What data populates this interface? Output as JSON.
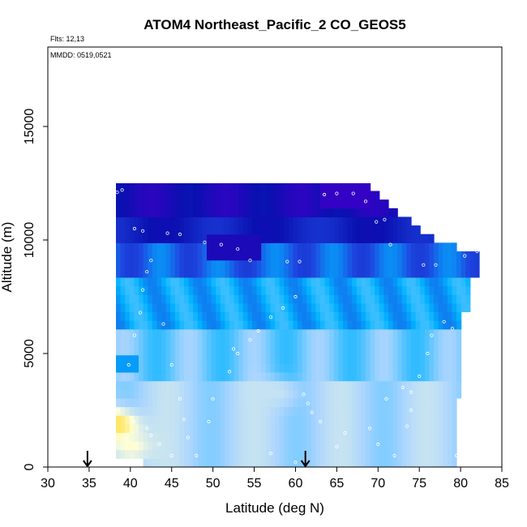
{
  "chart_data": {
    "type": "heatmap",
    "title": "ATOM4 Northeast_Pacific_2 CO_GEOS5",
    "flights_label": "Flts: 12,13",
    "dates_label": "MMDD: 0519,0521",
    "xlabel": "Latitude (deg N)",
    "ylabel": "Altitude (m)",
    "xlim": [
      30,
      85
    ],
    "ylim": [
      0,
      18500
    ],
    "x_ticks": [
      30,
      35,
      40,
      45,
      50,
      55,
      60,
      65,
      70,
      75,
      80,
      85
    ],
    "x_tick_labels": [
      "30",
      "35",
      "40",
      "45",
      "50",
      "55",
      "60",
      "65",
      "70",
      "75",
      "80",
      "85"
    ],
    "y_ticks": [
      0,
      5000,
      10000,
      15000
    ],
    "y_tick_labels": [
      "0",
      "5000",
      "10000",
      "15000"
    ],
    "grid": false,
    "colormap": [
      "#3b00c8",
      "#0a10b0",
      "#1e46e0",
      "#00b2ff",
      "#a8d4ff",
      "#ffffd8",
      "#ffd000",
      "#e00000"
    ],
    "color_meaning": "CO mixing ratio, low (purple/blue) to high (yellow/red)",
    "turnaround_markers_lat": [
      34.8,
      61.2
    ],
    "upper_envelope": [
      [
        38.5,
        12500
      ],
      [
        68.5,
        12500
      ],
      [
        70,
        12000
      ],
      [
        73,
        11000
      ],
      [
        76,
        10300
      ],
      [
        78,
        9800
      ],
      [
        82,
        9500
      ],
      [
        82,
        9000
      ],
      [
        81.5,
        8500
      ],
      [
        80.5,
        6900
      ],
      [
        80,
        5000
      ],
      [
        80,
        3500
      ],
      [
        79.5,
        3000
      ]
    ],
    "left_envelope": [
      [
        38.5,
        12500
      ],
      [
        37.5,
        11500
      ],
      [
        37.0,
        10000
      ],
      [
        36.5,
        9000
      ],
      [
        36.2,
        8000
      ],
      [
        35.8,
        7000
      ],
      [
        35.5,
        6000
      ],
      [
        35.3,
        5200
      ],
      [
        35.0,
        5000
      ],
      [
        35.0,
        3500
      ],
      [
        34.5,
        3400
      ],
      [
        34.2,
        1300
      ],
      [
        35.5,
        1000
      ],
      [
        38,
        1000
      ],
      [
        38,
        500
      ],
      [
        41.5,
        500
      ],
      [
        41.5,
        0
      ]
    ],
    "plumes": [
      {
        "lat": 36.5,
        "alt": 1900,
        "level": 0.96
      },
      {
        "lat": 38.5,
        "alt": 1800,
        "level": 0.8
      },
      {
        "lat": 40.0,
        "alt": 900,
        "level": 0.72
      },
      {
        "lat": 57.5,
        "alt": 3300,
        "level": 0.62
      }
    ],
    "flight_track": [
      [
        38.4,
        12100
      ],
      [
        39.0,
        12200
      ],
      [
        40.5,
        10500
      ],
      [
        41.5,
        10400
      ],
      [
        44.5,
        10300
      ],
      [
        46.0,
        10250
      ],
      [
        49.0,
        9900
      ],
      [
        51.0,
        9800
      ],
      [
        53.0,
        9600
      ],
      [
        54.5,
        9100
      ],
      [
        59.0,
        9050
      ],
      [
        60.5,
        9050
      ],
      [
        63.5,
        12000
      ],
      [
        65.0,
        12050
      ],
      [
        67.0,
        12050
      ],
      [
        68.5,
        11700
      ],
      [
        69.8,
        10800
      ],
      [
        70.8,
        10900
      ],
      [
        71.5,
        9800
      ],
      [
        75.5,
        8900
      ],
      [
        77.0,
        8900
      ],
      [
        80.5,
        9300
      ],
      [
        82.0,
        9500
      ],
      [
        35.3,
        4000
      ],
      [
        35.5,
        3800
      ],
      [
        36.5,
        3500
      ],
      [
        37.5,
        3000
      ],
      [
        38.5,
        2500
      ],
      [
        40.5,
        2000
      ],
      [
        42.0,
        1700
      ],
      [
        42.5,
        1400
      ],
      [
        43.5,
        1000
      ],
      [
        45.0,
        500
      ],
      [
        48.0,
        500
      ],
      [
        49.5,
        2000
      ],
      [
        50.0,
        3000
      ],
      [
        52.0,
        4200
      ],
      [
        52.5,
        5200
      ],
      [
        53.0,
        5000
      ],
      [
        54.5,
        5600
      ],
      [
        55.5,
        6000
      ],
      [
        57.0,
        6600
      ],
      [
        58.5,
        7000
      ],
      [
        60.0,
        7500
      ],
      [
        61.0,
        3200
      ],
      [
        61.5,
        2800
      ],
      [
        62.0,
        2400
      ],
      [
        63.0,
        2000
      ],
      [
        66.0,
        1500
      ],
      [
        70.0,
        1000
      ],
      [
        72.0,
        500
      ],
      [
        73.5,
        1800
      ],
      [
        74.0,
        2500
      ],
      [
        75.0,
        4000
      ],
      [
        76.0,
        5000
      ],
      [
        76.5,
        5800
      ],
      [
        78.0,
        6400
      ],
      [
        79.0,
        6100
      ],
      [
        79.5,
        500
      ],
      [
        39.8,
        4500
      ],
      [
        40.5,
        5800
      ],
      [
        41.2,
        6800
      ],
      [
        41.5,
        7800
      ],
      [
        42.0,
        8600
      ],
      [
        42.5,
        9100
      ],
      [
        44.0,
        6300
      ],
      [
        45.0,
        4500
      ],
      [
        46.0,
        3000
      ],
      [
        46.5,
        2100
      ],
      [
        47.0,
        1300
      ],
      [
        57.0,
        600
      ],
      [
        60.0,
        200
      ],
      [
        65.0,
        900
      ],
      [
        69.0,
        1700
      ],
      [
        71.0,
        3000
      ],
      [
        73.0,
        3500
      ],
      [
        74.0,
        3300
      ]
    ]
  }
}
